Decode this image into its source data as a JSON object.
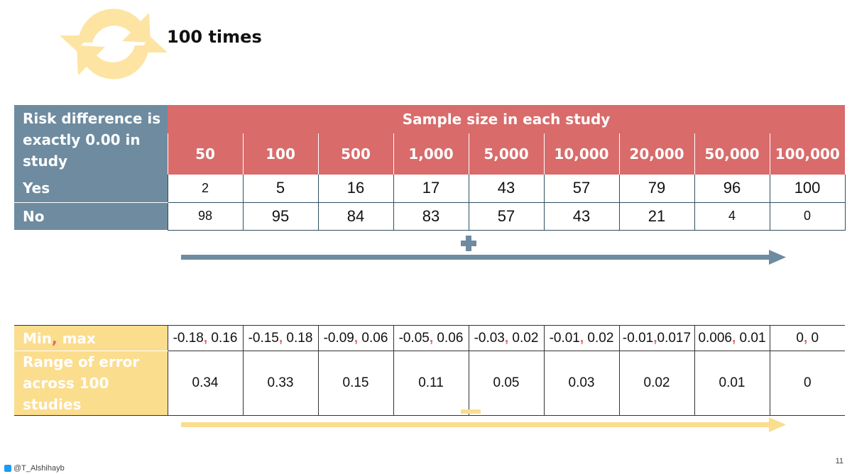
{
  "title": "100 times",
  "table1": {
    "stub_header": "Risk difference is exactly 0.00 in study",
    "span_header": "Sample size in each study",
    "sample_sizes": [
      "50",
      "100",
      "500",
      "1,000",
      "5,000",
      "10,000",
      "20,000",
      "50,000",
      "100,000"
    ],
    "rows": [
      {
        "label": "Yes",
        "values": [
          "2",
          "5",
          "16",
          "17",
          "43",
          "57",
          "79",
          "96",
          "100"
        ]
      },
      {
        "label": "No",
        "values": [
          "98",
          "95",
          "84",
          "83",
          "57",
          "43",
          "21",
          "4",
          "0"
        ]
      }
    ]
  },
  "table2": {
    "row1_label_a": "Min",
    "row1_label_sep": ",",
    "row1_label_b": " max",
    "row1": [
      {
        "a": "-0.18",
        "sep": ",",
        "b": " 0.16"
      },
      {
        "a": "-0.15",
        "sep": ",",
        "b": " 0.18"
      },
      {
        "a": "-0.09",
        "sep": ",",
        "b": " 0.06"
      },
      {
        "a": "-0.05",
        "sep": ",",
        "b": " 0.06"
      },
      {
        "a": "-0.03",
        "sep": ",",
        "b": " 0.02"
      },
      {
        "a": "-0.01",
        "sep": ",",
        "b": " 0.02"
      },
      {
        "a": "-0.01",
        "sep": ",",
        "b": "0.017"
      },
      {
        "a": "0.006",
        "sep": ",",
        "b": " 0.01"
      },
      {
        "a": "0",
        "sep": ",",
        "b": " 0"
      }
    ],
    "row2_label": "Range of error across 100 studies",
    "row2": [
      "0.34",
      "0.33",
      "0.15",
      "0.11",
      "0.05",
      "0.03",
      "0.02",
      "0.01",
      "0"
    ]
  },
  "footer": {
    "handle": "@T_Alshihayb",
    "page_number": "11"
  },
  "colors": {
    "header_red": "#d96b6b",
    "stub_slate": "#6e8ba0",
    "yellow": "#fbdd8e",
    "arrow_blue": "#6e8ba0"
  },
  "icons": {
    "refresh": "refresh-cycle-icon",
    "plus": "plus-icon",
    "minus": "minus-icon",
    "twitter": "twitter-icon"
  }
}
